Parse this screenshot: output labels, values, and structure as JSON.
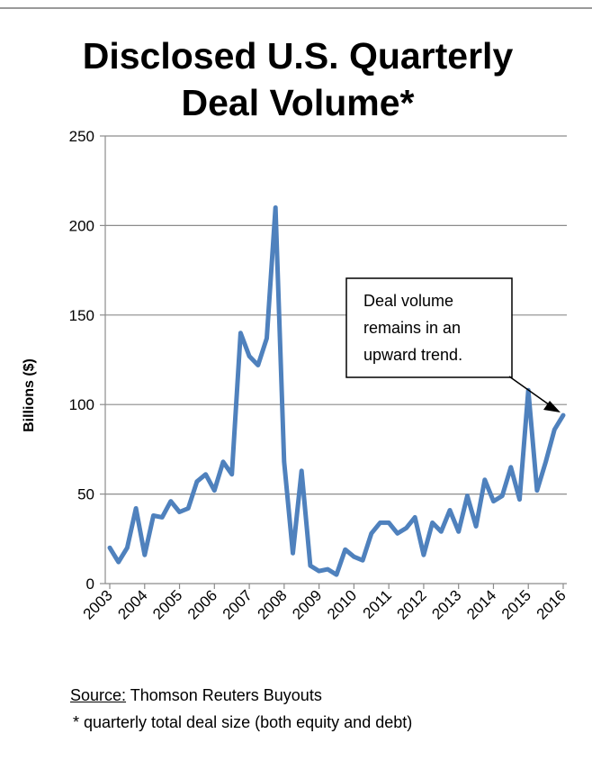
{
  "chart_data": {
    "type": "line",
    "title_line1": "Disclosed U.S. Quarterly",
    "title_line2": "Deal Volume*",
    "ylabel": "Billions ($)",
    "ylim": [
      0,
      250
    ],
    "yticks": [
      0,
      50,
      100,
      150,
      200,
      250
    ],
    "xlim": [
      2003,
      2016.4
    ],
    "xticks": [
      2003,
      2004,
      2005,
      2006,
      2007,
      2008,
      2009,
      2010,
      2011,
      2012,
      2013,
      2014,
      2015,
      2016
    ],
    "xtick_labels": [
      "2003",
      "2004",
      "2005",
      "2006",
      "2007",
      "2008",
      "2009",
      "2010",
      "2011",
      "2012",
      "2013",
      "2014",
      "2015",
      "2016"
    ],
    "grid": true,
    "line_color": "#4F81BD",
    "series": [
      {
        "values": [
          [
            2003.0,
            20
          ],
          [
            2003.25,
            12
          ],
          [
            2003.5,
            20
          ],
          [
            2003.75,
            42
          ],
          [
            2004.0,
            16
          ],
          [
            2004.25,
            38
          ],
          [
            2004.5,
            37
          ],
          [
            2004.75,
            46
          ],
          [
            2005.0,
            40
          ],
          [
            2005.25,
            42
          ],
          [
            2005.5,
            57
          ],
          [
            2005.75,
            61
          ],
          [
            2006.0,
            52
          ],
          [
            2006.25,
            68
          ],
          [
            2006.5,
            61
          ],
          [
            2006.75,
            140
          ],
          [
            2007.0,
            127
          ],
          [
            2007.25,
            122
          ],
          [
            2007.5,
            137
          ],
          [
            2007.75,
            210
          ],
          [
            2008.0,
            68
          ],
          [
            2008.25,
            17
          ],
          [
            2008.5,
            63
          ],
          [
            2008.75,
            10
          ],
          [
            2009.0,
            7
          ],
          [
            2009.25,
            8
          ],
          [
            2009.5,
            5
          ],
          [
            2009.75,
            19
          ],
          [
            2010.0,
            15
          ],
          [
            2010.25,
            13
          ],
          [
            2010.5,
            28
          ],
          [
            2010.75,
            34
          ],
          [
            2011.0,
            34
          ],
          [
            2011.25,
            28
          ],
          [
            2011.5,
            31
          ],
          [
            2011.75,
            37
          ],
          [
            2012.0,
            16
          ],
          [
            2012.25,
            34
          ],
          [
            2012.5,
            29
          ],
          [
            2012.75,
            41
          ],
          [
            2013.0,
            29
          ],
          [
            2013.25,
            49
          ],
          [
            2013.5,
            32
          ],
          [
            2013.75,
            58
          ],
          [
            2014.0,
            46
          ],
          [
            2014.25,
            49
          ],
          [
            2014.5,
            65
          ],
          [
            2014.75,
            47
          ],
          [
            2015.0,
            108
          ],
          [
            2015.25,
            52
          ],
          [
            2015.5,
            68
          ],
          [
            2015.75,
            86
          ],
          [
            2016.0,
            94
          ]
        ]
      }
    ],
    "annotation": {
      "lines": [
        "Deal volume",
        "remains in an",
        "upward trend."
      ]
    }
  },
  "footer": {
    "source_label": "Source:",
    "source_text": " Thomson Reuters Buyouts",
    "note": "* quarterly total deal size (both equity and debt)"
  }
}
